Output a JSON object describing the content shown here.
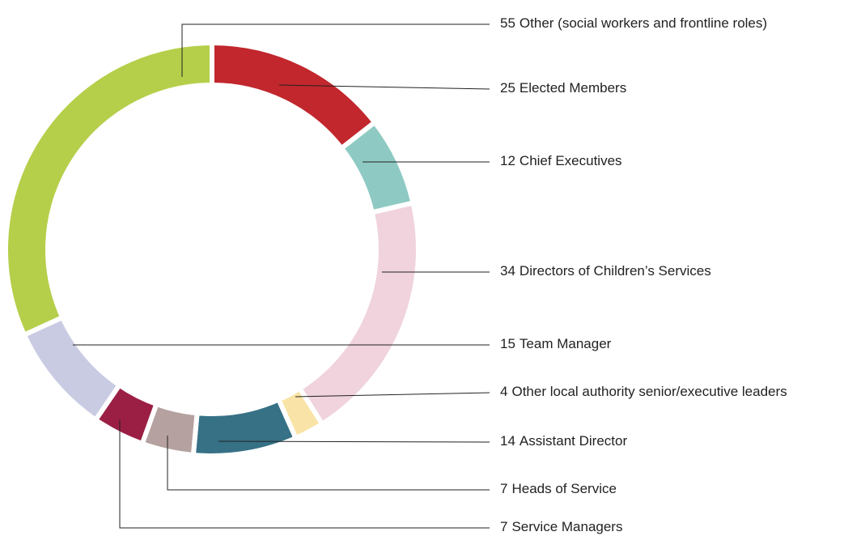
{
  "chart_data": {
    "type": "donut",
    "categories": [
      "Elected Members",
      "Chief Executives",
      "Directors of Children’s Services",
      "Other local authority senior/executive leaders",
      "Assistant Director",
      "Heads of Service",
      "Service Managers",
      "Team Manager",
      "Other (social workers and frontline roles)"
    ],
    "values": [
      25,
      12,
      34,
      4,
      14,
      7,
      7,
      15,
      55
    ],
    "colors": [
      "#c1272d",
      "#8ecac3",
      "#f0d3dc",
      "#f9e3a6",
      "#367186",
      "#b5a2a0",
      "#9b1f45",
      "#c9cbe3",
      "#b5cf4a"
    ]
  }
}
